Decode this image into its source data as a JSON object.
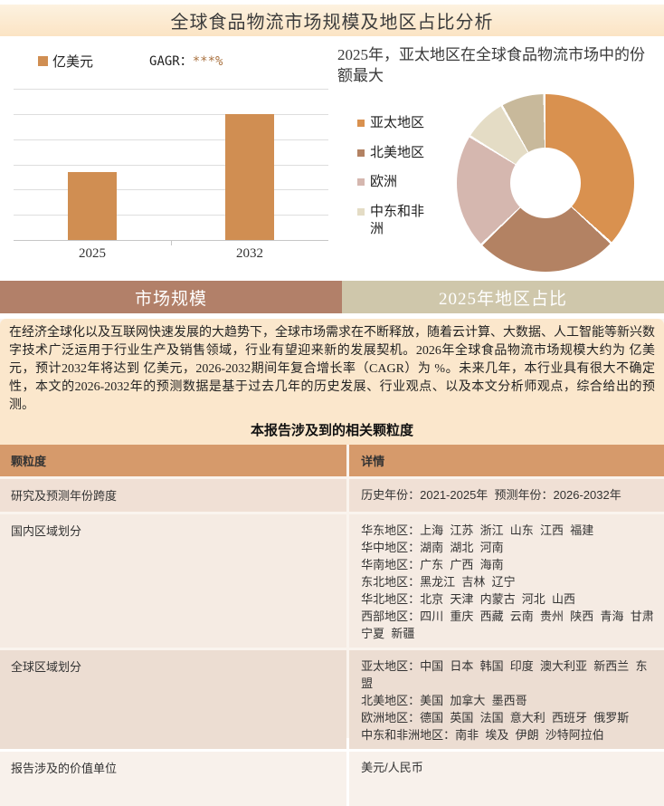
{
  "page": {
    "title": "全球食品物流市场规模及地区占比分析"
  },
  "bar_section": {
    "legend_label": "亿美元",
    "cagr_label": "GAGR：",
    "cagr_value": "***%"
  },
  "donut_section": {
    "headline": "2025年，亚太地区在全球食品物流市场中的份额最大"
  },
  "chart_data": [
    {
      "type": "bar",
      "title": "市场规模",
      "unit": "亿美元",
      "categories": [
        "2025",
        "2032"
      ],
      "values_shown": false,
      "relative_heights": [
        0.45,
        0.83
      ],
      "bar_color": "#D08E52",
      "gridlines": 7,
      "legend": [
        "亿美元"
      ],
      "annotation": "GAGR：***%"
    },
    {
      "type": "pie",
      "subtype": "donut",
      "title": "2025年地区占比",
      "slices": [
        {
          "label": "亚太地区",
          "percent": 37,
          "color": "#D9914F"
        },
        {
          "label": "北美地区",
          "percent": 26,
          "color": "#B38263"
        },
        {
          "label": "欧洲",
          "percent": 21,
          "color": "#D5B7AF"
        },
        {
          "label": "中东和非洲",
          "percent": 8,
          "color": "#E4DCC5"
        },
        {
          "label": "",
          "percent": 8,
          "color": "#C8B99B"
        }
      ],
      "legend_entries": [
        "亚太地区",
        "北美地区",
        "欧洲",
        "中东和非洲"
      ],
      "legend_position": "left"
    }
  ],
  "tabs": [
    {
      "label": "市场规模",
      "bg": "#B28069"
    },
    {
      "label": "2025年地区占比",
      "bg": "#CFC7AB"
    }
  ],
  "content": {
    "paragraph": "在经济全球化以及互联网快速发展的大趋势下，全球市场需求在不断释放，随着云计算、大数据、人工智能等新兴数字技术广泛运用于行业生产及销售领域，行业有望迎来新的发展契机。2026年全球食品物流市场规模大约为 亿美元，预计2032年将达到 亿美元，2026-2032期间年复合增长率（CAGR）为 %。未来几年，本行业具有很大不确定性，本文的2026-2032年的预测数据是基于过去几年的历史发展、行业观点、以及本文分析师观点，综合给出的预测。",
    "table_title": "本报告涉及到的相关颗粒度",
    "table": {
      "headers": [
        "颗粒度",
        "详情"
      ],
      "rows": [
        {
          "label": "研究及预测年份跨度",
          "detail_lines": [
            "历史年份：2021-2025年  预测年份：2026-2032年"
          ]
        },
        {
          "label": "国内区域划分",
          "detail_lines": [
            "华东地区：上海  江苏  浙江  山东  江西  福建",
            "华中地区：湖南  湖北  河南",
            "华南地区：广东  广西  海南",
            "东北地区：黑龙江  吉林  辽宁",
            "华北地区：北京  天津  内蒙古  河北  山西",
            "西部地区：四川  重庆  西藏  云南  贵州  陕西  青海  甘肃  宁夏  新疆"
          ]
        },
        {
          "label": "全球区域划分",
          "detail_lines": [
            "亚太地区：中国  日本  韩国  印度  澳大利亚  新西兰  东盟",
            "北美地区：美国  加拿大  墨西哥",
            "欧洲地区：德国  英国  法国  意大利  西班牙  俄罗斯",
            "中东和非洲地区：南非  埃及  伊朗  沙特阿拉伯"
          ]
        },
        {
          "label": "报告涉及的价值单位",
          "detail_lines": [
            "美元/人民币"
          ]
        }
      ]
    }
  },
  "colors": {
    "title_bar_bg": "#FBE4C4",
    "paragraph_bg": "#FBE7CC",
    "table_header_bg": "#D69A6B",
    "tab_left_bg": "#B28069",
    "tab_right_bg": "#CFC7AB",
    "bar_color": "#D08E52",
    "cagr_value_color": "#A9713F",
    "row_alt_dark": "#ECDDD2",
    "row_alt_light": "#F8F1EB"
  }
}
